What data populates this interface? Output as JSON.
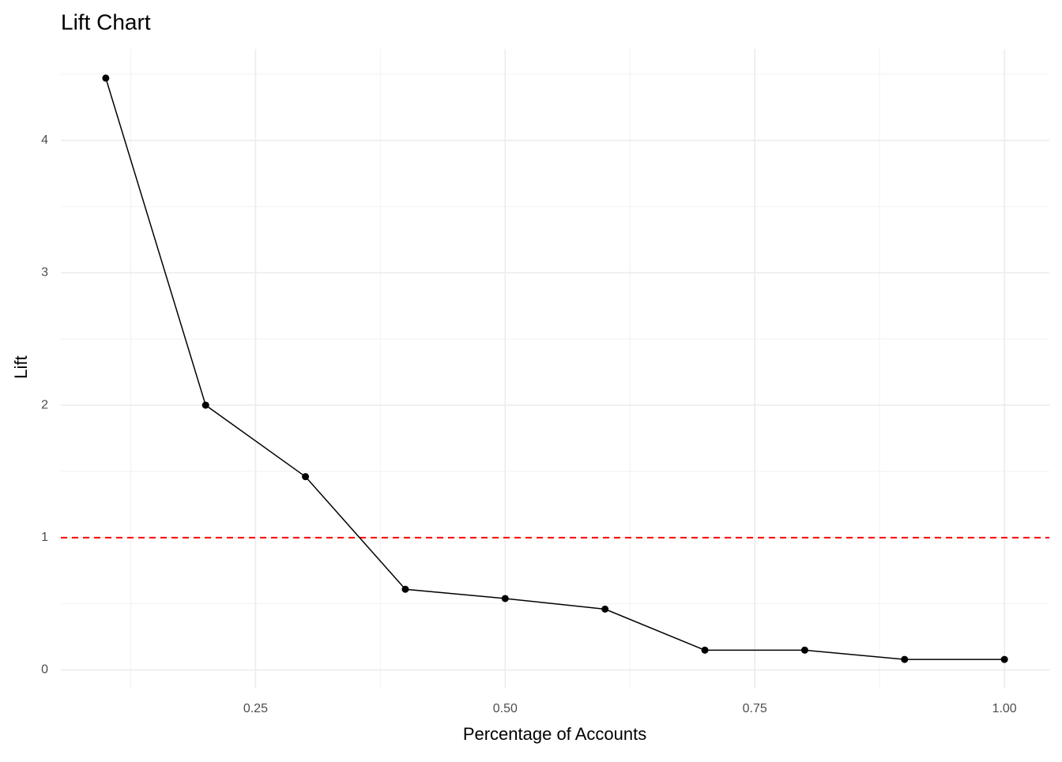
{
  "chart_data": {
    "type": "line",
    "title": "Lift Chart",
    "x_label": "Percentage of Accounts",
    "y_label": "Lift",
    "x": [
      0.1,
      0.2,
      0.3,
      0.4,
      0.5,
      0.6,
      0.7,
      0.8,
      0.9,
      1.0
    ],
    "series": [
      {
        "color": "#000000",
        "values": [
          4.47,
          2.0,
          1.46,
          0.61,
          0.54,
          0.46,
          0.15,
          0.15,
          0.08,
          0.08
        ]
      }
    ],
    "xlim": [
      0.055,
      1.045
    ],
    "ylim": [
      -0.14,
      4.69
    ],
    "xticks": [
      {
        "value": 0.25,
        "label": "0.25"
      },
      {
        "value": 0.5,
        "label": "0.50"
      },
      {
        "value": 0.75,
        "label": "0.75"
      },
      {
        "value": 1.0,
        "label": "1.00"
      }
    ],
    "yticks": [
      0,
      1,
      2,
      3,
      4
    ],
    "grid": true,
    "reference_line": {
      "value": 1,
      "color": "#ff0000",
      "dashed": true
    }
  }
}
